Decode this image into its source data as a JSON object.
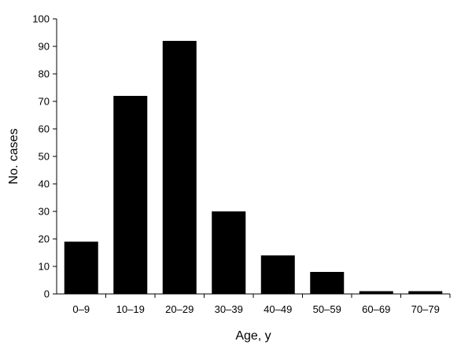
{
  "chart_data": {
    "type": "bar",
    "categories": [
      "0–9",
      "10–19",
      "20–29",
      "30–39",
      "40–49",
      "50–59",
      "60–69",
      "70–79"
    ],
    "values": [
      19,
      72,
      92,
      30,
      14,
      8,
      1,
      1
    ],
    "title": "",
    "xlabel": "Age, y",
    "ylabel": "No. cases",
    "ylim": [
      0,
      100
    ],
    "yticks": [
      "0",
      "10",
      "20",
      "30",
      "40",
      "50",
      "60",
      "70",
      "80",
      "90",
      "100"
    ],
    "grid": false,
    "legend": "none",
    "bar_color": "#000000"
  }
}
